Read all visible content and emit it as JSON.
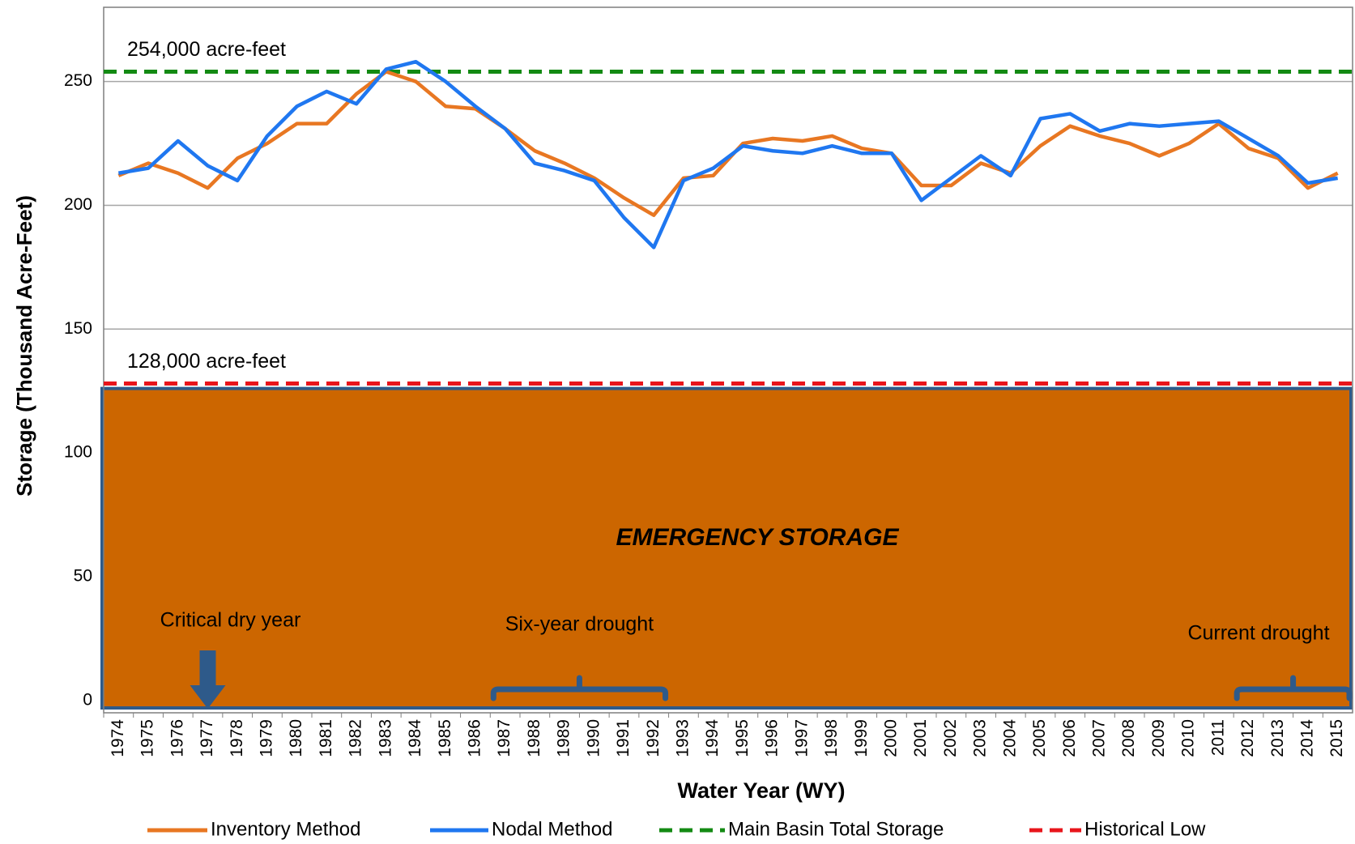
{
  "chart_data": {
    "type": "line",
    "x_label": "Water Year (WY)",
    "y_label": "Storage (Thousand Acre-Feet)",
    "categories": [
      "1974",
      "1975",
      "1976",
      "1977",
      "1978",
      "1979",
      "1980",
      "1981",
      "1982",
      "1983",
      "1984",
      "1985",
      "1986",
      "1987",
      "1988",
      "1989",
      "1990",
      "1991",
      "1992",
      "1993",
      "1994",
      "1995",
      "1996",
      "1997",
      "1998",
      "1999",
      "2000",
      "2001",
      "2002",
      "2003",
      "2004",
      "2005",
      "2006",
      "2007",
      "2008",
      "2009",
      "2010",
      "2011",
      "2012",
      "2013",
      "2014",
      "2015"
    ],
    "series": [
      {
        "name": "Inventory Method",
        "color": "#e87722",
        "values": [
          212,
          217,
          213,
          207,
          219,
          225,
          233,
          233,
          245,
          254,
          250,
          240,
          239,
          231,
          222,
          217,
          211,
          203,
          196,
          211,
          212,
          225,
          227,
          226,
          228,
          223,
          221,
          208,
          208,
          217,
          213,
          224,
          232,
          228,
          225,
          220,
          225,
          233,
          223,
          219,
          207,
          213
        ]
      },
      {
        "name": "Nodal Method",
        "color": "#1f77f0",
        "values": [
          213,
          215,
          226,
          216,
          210,
          228,
          240,
          246,
          241,
          255,
          258,
          250,
          240,
          231,
          217,
          214,
          210,
          195,
          183,
          210,
          215,
          224,
          222,
          221,
          224,
          221,
          221,
          202,
          211,
          220,
          212,
          235,
          237,
          230,
          233,
          232,
          233,
          234,
          227,
          220,
          209,
          211
        ]
      }
    ],
    "reference_lines": [
      {
        "name": "Main Basin Total Storage",
        "value": 254,
        "color": "#138a13",
        "label": "254,000 acre-feet"
      },
      {
        "name": "Historical Low",
        "value": 128,
        "color": "#e8151b",
        "label": "128,000 acre-feet"
      }
    ],
    "emergency_storage": {
      "label": "EMERGENCY STORAGE",
      "top": 126,
      "color": "#cc6600",
      "border": "#2e5a8a"
    },
    "annotations": [
      {
        "text": "Critical dry year",
        "kind": "arrow",
        "from": "1977",
        "to": "1977"
      },
      {
        "text": "Six-year drought",
        "kind": "bracket",
        "from": "1987",
        "to": "1992"
      },
      {
        "text": "Current drought",
        "kind": "bracket",
        "from": "2012",
        "to": "2015"
      }
    ],
    "ylim": [
      -5,
      280
    ],
    "yticks": [
      0,
      50,
      100,
      150,
      200,
      250
    ],
    "grid": true
  }
}
